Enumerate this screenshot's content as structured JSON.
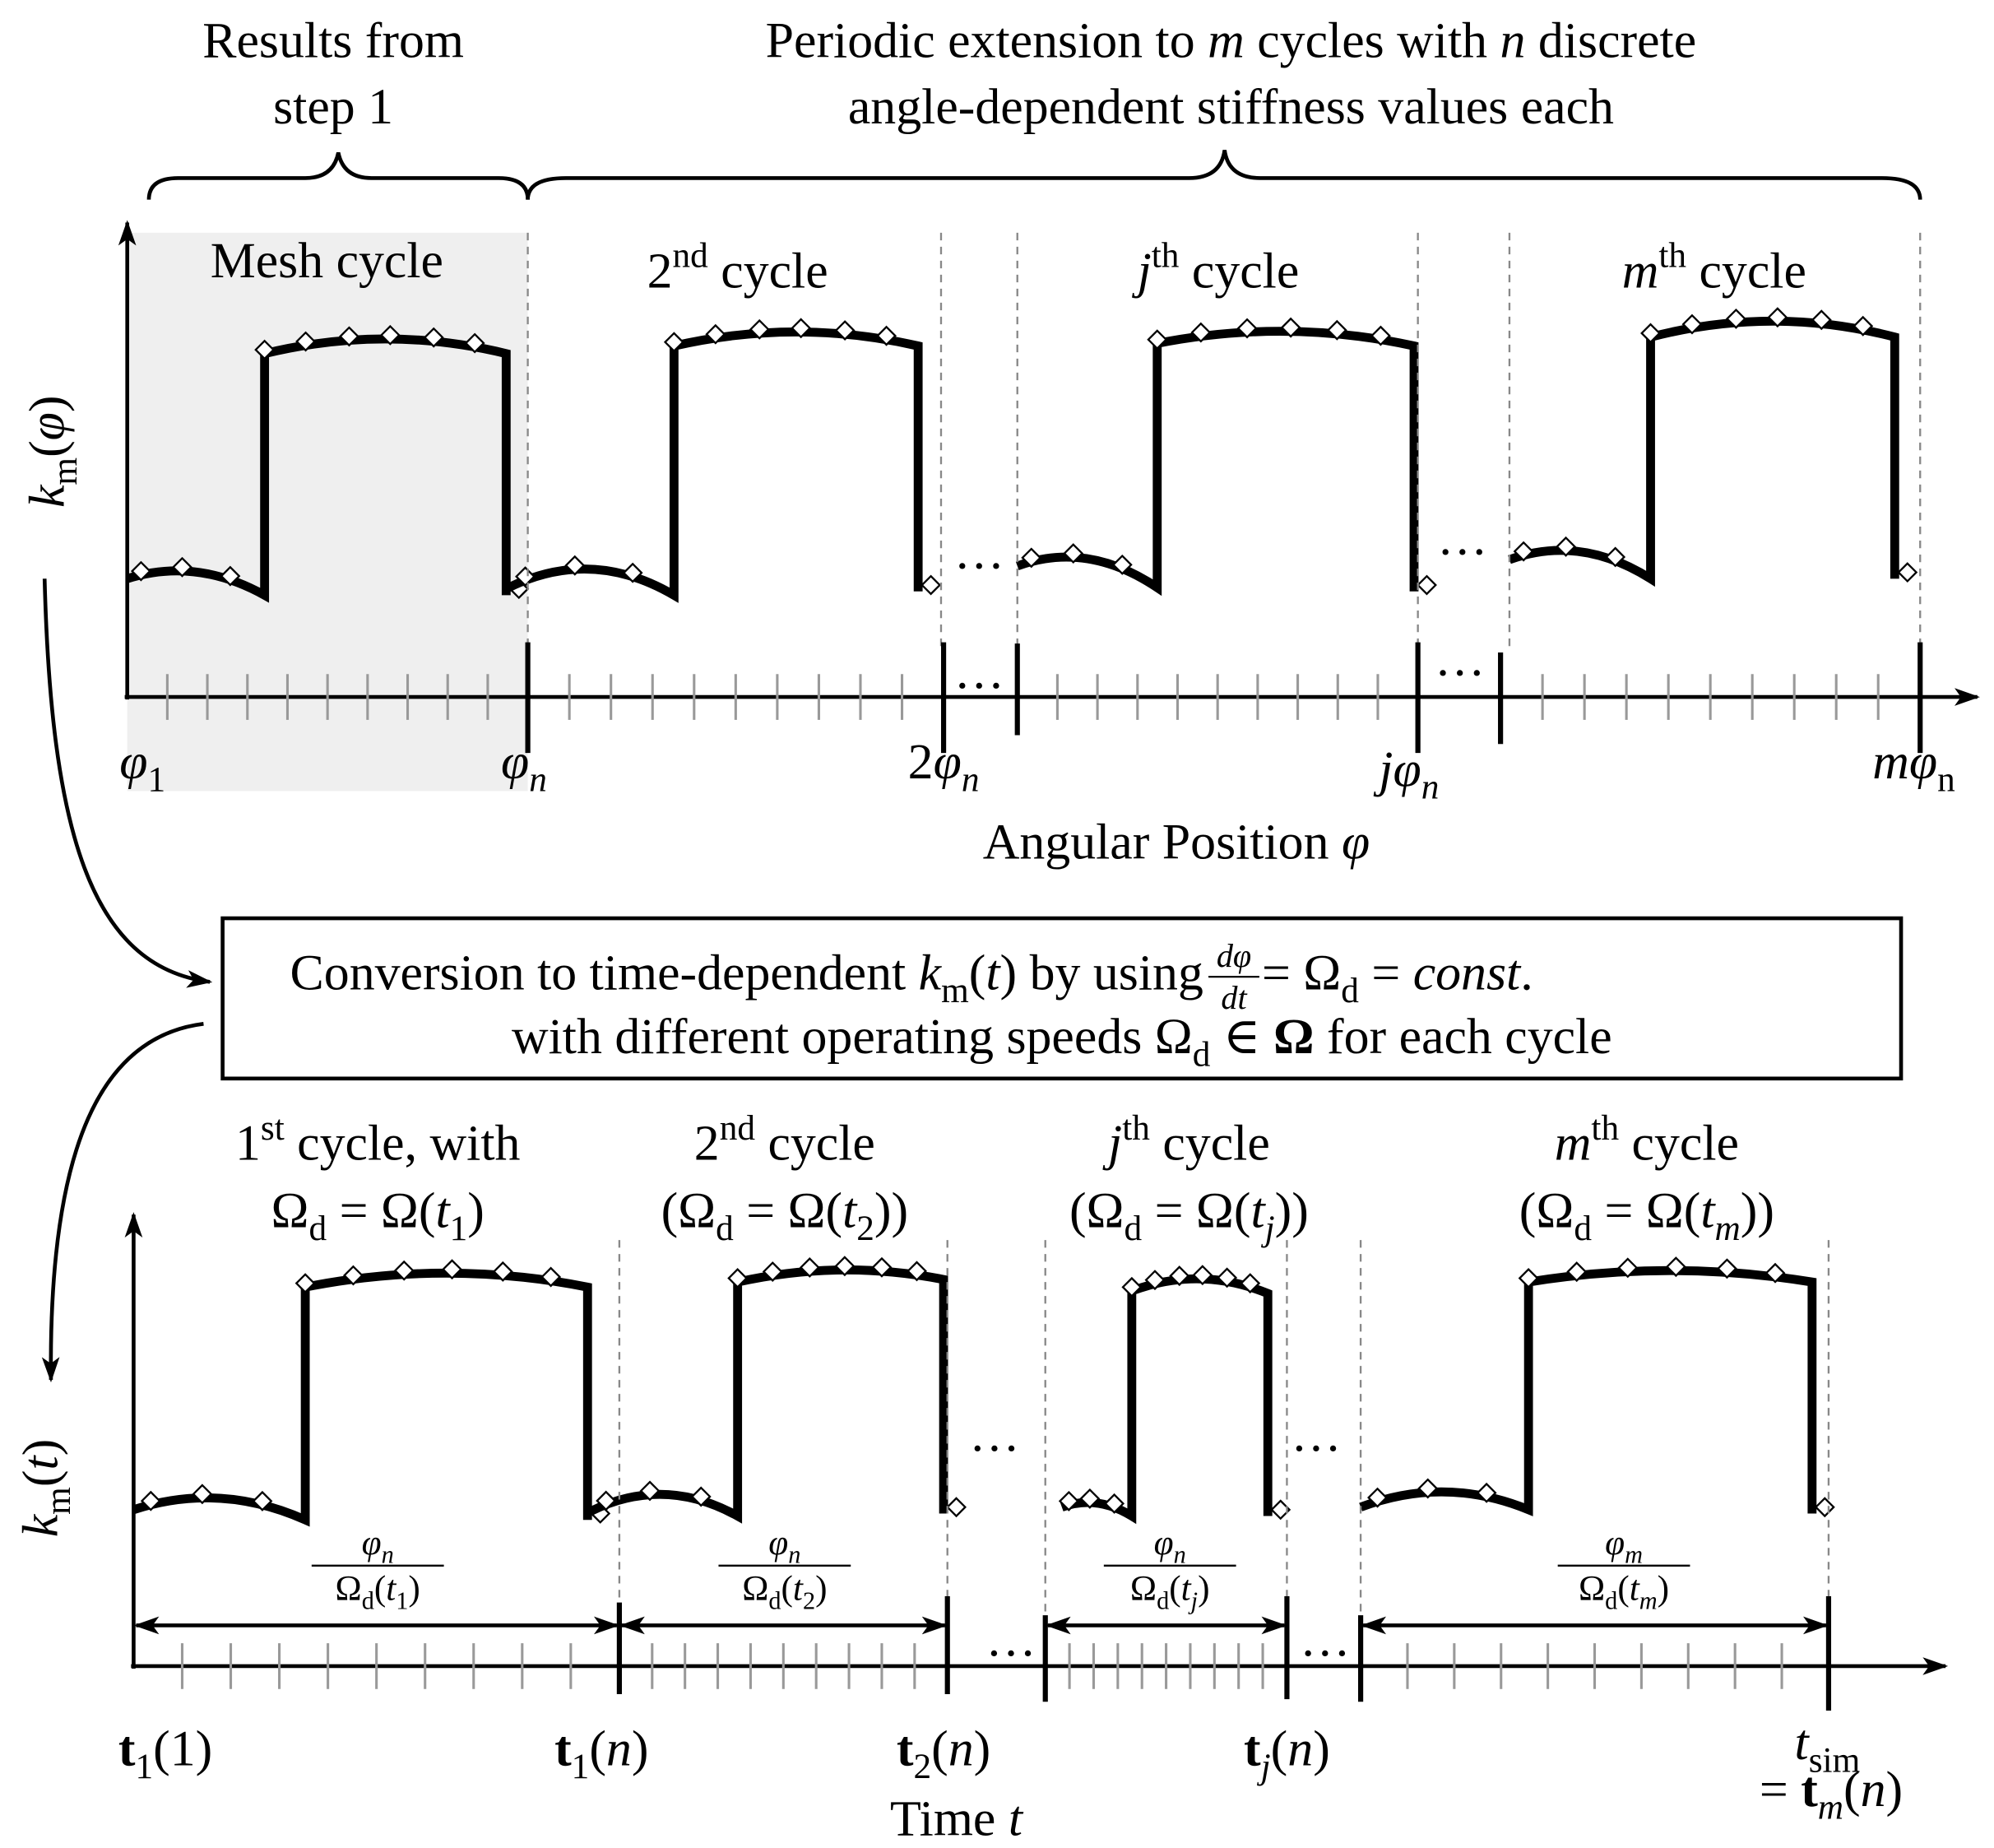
{
  "header": {
    "left": [
      "Results from",
      "step 1"
    ],
    "right_line1": [
      "Periodic extension to ",
      "m",
      " cycles with ",
      "n",
      " discrete"
    ],
    "right_line2": "angle-dependent stiffness values each"
  },
  "top_plot": {
    "y_label": [
      "k",
      "m",
      "(",
      "φ",
      ")"
    ],
    "x_label": [
      "Angular Position ",
      "φ"
    ],
    "cycles": [
      [
        "Mesh cycle"
      ],
      [
        "2",
        "nd",
        " cycle"
      ],
      [
        "j",
        "th",
        " cycle"
      ],
      [
        "m",
        "th",
        " cycle"
      ]
    ],
    "x_ticks": [
      [
        "φ",
        "1"
      ],
      [
        "φ",
        "n"
      ],
      [
        "2",
        "φ",
        "n"
      ],
      [
        "j",
        "φ",
        "n"
      ],
      [
        "m",
        "φ",
        "n"
      ]
    ],
    "ellipsis": "···"
  },
  "conversion": {
    "line1a": [
      "Conversion to time-dependent ",
      "k",
      "m",
      "(",
      "t",
      ") by using "
    ],
    "fraction": {
      "num": "dφ",
      "den": "dt"
    },
    "line1b": [
      " = Ω",
      "d",
      " = ",
      "const",
      "."
    ],
    "line2": [
      "with different operating speeds Ω",
      "d",
      " ∈ ",
      "Ω",
      " for each cycle"
    ]
  },
  "bottom_plot": {
    "y_label": [
      "k",
      "m",
      "(",
      "t",
      ")"
    ],
    "x_label": [
      "Time ",
      "t"
    ],
    "cycles": [
      {
        "line1": [
          "1",
          "st",
          " cycle, with"
        ],
        "line2": [
          "Ω",
          "d",
          " = Ω(",
          "t",
          "1",
          ")"
        ]
      },
      {
        "line1": [
          "2",
          "nd",
          " cycle"
        ],
        "line2": [
          "(Ω",
          "d",
          " = Ω(",
          "t",
          "2",
          "))"
        ]
      },
      {
        "line1": [
          "j",
          "th",
          " cycle"
        ],
        "line2": [
          "(Ω",
          "d",
          " = Ω(",
          "t",
          "j",
          "))"
        ]
      },
      {
        "line1": [
          "m",
          "th",
          " cycle"
        ],
        "line2": [
          "(Ω",
          "d",
          " = Ω(",
          "t",
          "m",
          "))"
        ]
      }
    ],
    "intervals": [
      {
        "num": [
          "φ",
          "n"
        ],
        "den": [
          "Ω",
          "d",
          "(",
          "t",
          "1",
          ")"
        ]
      },
      {
        "num": [
          "φ",
          "n"
        ],
        "den": [
          "Ω",
          "d",
          "(",
          "t",
          "2",
          ")"
        ]
      },
      {
        "num": [
          "φ",
          "n"
        ],
        "den": [
          "Ω",
          "d",
          "(",
          "t",
          "j",
          ")"
        ]
      },
      {
        "num": [
          "φ",
          "m"
        ],
        "den": [
          "Ω",
          "d",
          "(",
          "t",
          "m",
          ")"
        ]
      }
    ],
    "x_ticks": [
      [
        "t",
        "1",
        "(1)"
      ],
      [
        "t",
        "1",
        "(",
        "n",
        ")"
      ],
      [
        "t",
        "2",
        "(",
        "n",
        ")"
      ],
      [
        "t",
        "j",
        "(",
        "n",
        ")"
      ]
    ],
    "t_sim": {
      "line1": [
        "t",
        "sim"
      ],
      "line2": [
        "= ",
        "t",
        "m",
        "(",
        "n",
        ")"
      ]
    },
    "ellipsis": "···"
  }
}
